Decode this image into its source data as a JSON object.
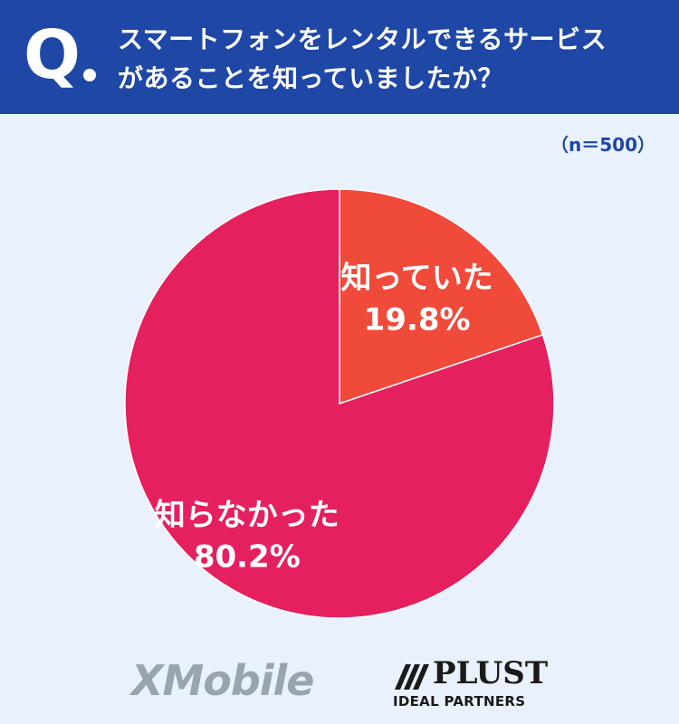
{
  "header": {
    "q_label": "Q",
    "question_lines": [
      "スマートフォンをレンタルできるサービス",
      "があることを知っていましたか？"
    ]
  },
  "sample_size": "（n＝500）",
  "chart_data": {
    "type": "pie",
    "slices": [
      {
        "label": "知っていた",
        "value": 19.8,
        "value_label": "19.8%",
        "color": "#f04a3a"
      },
      {
        "label": "知らなかった",
        "value": 80.2,
        "value_label": "80.2%",
        "color": "#e5205e"
      }
    ],
    "start": "12 o'clock, clockwise"
  },
  "logos": {
    "xmobile": "XMobile",
    "plust": "PLUST",
    "plust_sub": "IDEAL PARTNERS"
  },
  "colors": {
    "header_bg": "#1f47a6",
    "page_bg": "#e9f1fc"
  }
}
